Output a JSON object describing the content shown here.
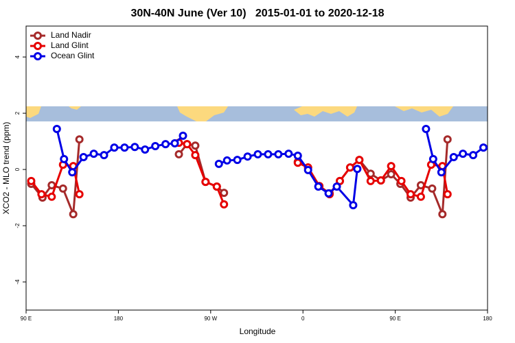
{
  "chart_data": {
    "type": "line",
    "title": "30N-40N June (Ver 10)   2015-01-01 to 2020-12-18",
    "xlabel": "Longitude",
    "ylabel": "XCO2 - MLO trend (ppm)",
    "xlim": [
      90,
      540
    ],
    "xticks": [
      {
        "value": 90,
        "label": "90 E"
      },
      {
        "value": 180,
        "label": "180"
      },
      {
        "value": 270,
        "label": "90 W"
      },
      {
        "value": 360,
        "label": "0"
      },
      {
        "value": 450,
        "label": "90 E"
      },
      {
        "value": 540,
        "label": "180"
      }
    ],
    "ylim": [
      -5,
      5.1
    ],
    "yticks": [
      -4,
      -2,
      0,
      2,
      4
    ],
    "legend": "topleft",
    "series": [
      {
        "name": "Land Nadir",
        "color": "#a52a2a",
        "x": [
          95,
          106,
          115,
          126,
          136,
          142,
          null,
          239,
          247,
          255,
          265,
          276,
          283,
          null,
          355,
          365,
          376,
          386,
          396,
          406,
          415,
          426,
          436,
          446,
          455,
          465,
          475,
          486,
          496,
          501
        ],
        "values": [
          -0.51,
          -1.0,
          -0.56,
          -0.68,
          -1.59,
          1.07,
          null,
          0.54,
          0.9,
          0.85,
          -0.44,
          -0.61,
          -0.83,
          null,
          0.27,
          0.07,
          -0.59,
          -0.85,
          -0.41,
          0.07,
          0.34,
          -0.15,
          -0.39,
          -0.17,
          -0.51,
          -1.0,
          -0.56,
          -0.68,
          -1.59,
          1.07
        ]
      },
      {
        "name": "Land Glint",
        "color": "#e60000",
        "x": [
          95,
          105,
          115,
          126,
          136,
          142,
          null,
          239,
          247,
          255,
          265,
          276,
          283,
          null,
          355,
          365,
          376,
          386,
          396,
          406,
          415,
          426,
          436,
          446,
          456,
          465,
          475,
          485,
          496,
          501
        ],
        "values": [
          -0.41,
          -0.88,
          -0.97,
          0.17,
          0.12,
          -0.88,
          null,
          0.95,
          0.9,
          0.51,
          -0.44,
          -0.61,
          -1.24,
          null,
          0.24,
          0.07,
          -0.59,
          -0.88,
          -0.41,
          0.07,
          0.34,
          -0.41,
          -0.39,
          0.12,
          -0.41,
          -0.88,
          -0.97,
          0.17,
          0.12,
          -0.88
        ]
      },
      {
        "name": "Ocean Glint",
        "color": "#0000e6",
        "x": [
          120,
          127,
          135,
          146,
          156,
          166,
          176,
          186,
          196,
          206,
          216,
          226,
          235,
          243,
          null,
          278,
          286,
          296,
          306,
          316,
          326,
          336,
          346,
          355,
          365,
          375,
          385,
          393,
          409,
          413,
          null,
          480,
          487,
          495,
          507,
          516,
          526,
          536
        ],
        "values": [
          1.44,
          0.37,
          -0.1,
          0.44,
          0.56,
          0.51,
          0.78,
          0.78,
          0.8,
          0.71,
          0.83,
          0.9,
          0.93,
          1.2,
          null,
          0.2,
          0.32,
          0.34,
          0.46,
          0.54,
          0.54,
          0.54,
          0.56,
          0.49,
          -0.02,
          -0.61,
          -0.85,
          -0.61,
          -1.27,
          0.02,
          null,
          1.44,
          0.37,
          -0.1,
          0.44,
          0.56,
          0.51,
          0.78
        ]
      }
    ]
  }
}
